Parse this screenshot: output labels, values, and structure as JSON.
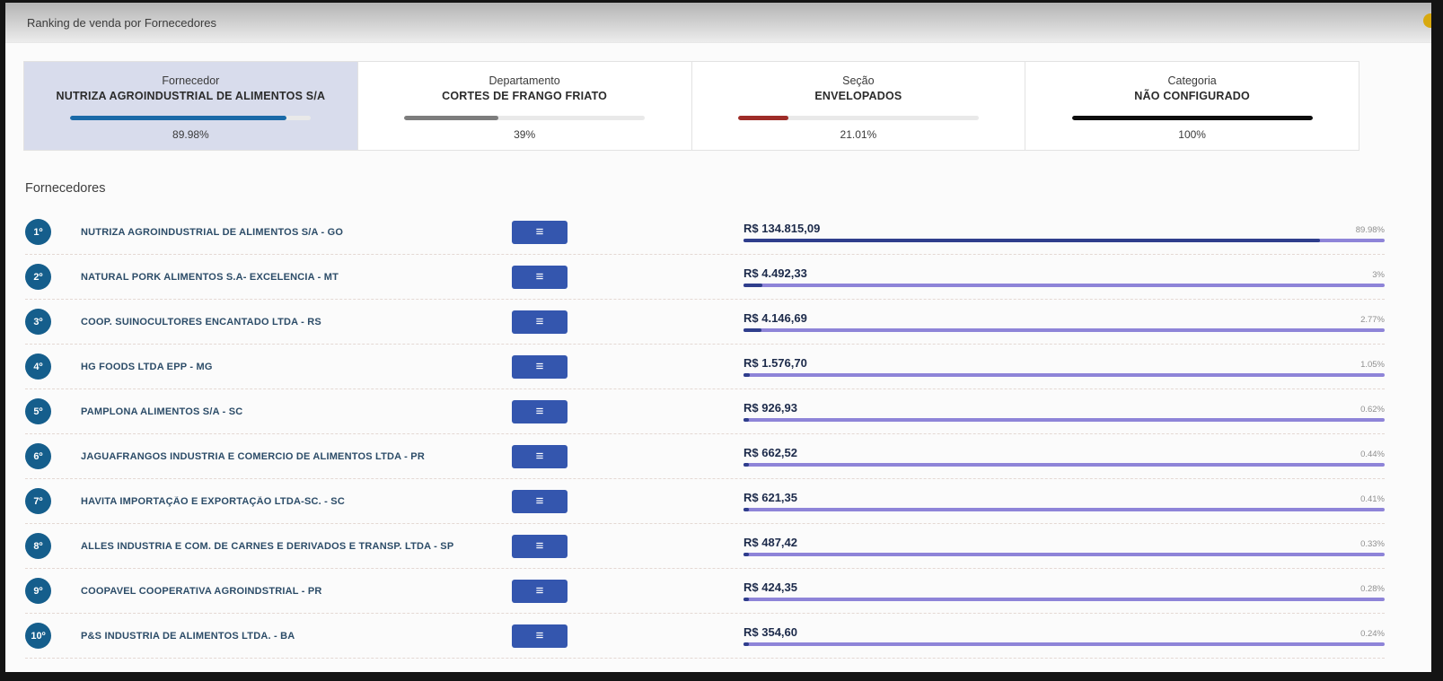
{
  "header": {
    "title": "Ranking de venda por Fornecedores"
  },
  "cards": [
    {
      "label": "Fornecedor",
      "value": "NUTRIZA AGROINDUSTRIAL DE ALIMENTOS S/A",
      "percent": 89.98,
      "percent_label": "89.98%",
      "bar_color": "#1a6aa8"
    },
    {
      "label": "Departamento",
      "value": "CORTES DE FRANGO FRIATO",
      "percent": 39,
      "percent_label": "39%",
      "bar_color": "#7d7d7d"
    },
    {
      "label": "Seção",
      "value": "ENVELOPADOS",
      "percent": 21.01,
      "percent_label": "21.01%",
      "bar_color": "#9e2c28"
    },
    {
      "label": "Categoria",
      "value": "NÃO CONFIGURADO",
      "percent": 100,
      "percent_label": "100%",
      "bar_color": "#0d0d0d"
    }
  ],
  "section": {
    "title": "Fornecedores"
  },
  "row_icon": "≡",
  "colors": {
    "row_bar_fill": "#2f3e8c",
    "row_bar_track": "#8e84d8",
    "rank_badge": "#155e8c",
    "menu_button": "#3456ae"
  },
  "suppliers": [
    {
      "rank": "1º",
      "name": "NUTRIZA AGROINDUSTRIAL DE ALIMENTOS S/A - GO",
      "value": "R$ 134.815,09",
      "percent": 89.98,
      "percent_label": "89.98%"
    },
    {
      "rank": "2º",
      "name": "NATURAL PORK ALIMENTOS S.A- EXCELENCIA - MT",
      "value": "R$ 4.492,33",
      "percent": 3,
      "percent_label": "3%"
    },
    {
      "rank": "3º",
      "name": "COOP. SUINOCULTORES ENCANTADO LTDA - RS",
      "value": "R$ 4.146,69",
      "percent": 2.77,
      "percent_label": "2.77%"
    },
    {
      "rank": "4º",
      "name": "HG FOODS LTDA EPP - MG",
      "value": "R$ 1.576,70",
      "percent": 1.05,
      "percent_label": "1.05%"
    },
    {
      "rank": "5º",
      "name": "PAMPLONA ALIMENTOS S/A - SC",
      "value": "R$ 926,93",
      "percent": 0.62,
      "percent_label": "0.62%"
    },
    {
      "rank": "6º",
      "name": "JAGUAFRANGOS INDUSTRIA E COMERCIO DE ALIMENTOS LTDA - PR",
      "value": "R$ 662,52",
      "percent": 0.44,
      "percent_label": "0.44%"
    },
    {
      "rank": "7º",
      "name": "HAVITA IMPORTAÇÃO E EXPORTAÇÃO LTDA-SC. - SC",
      "value": "R$ 621,35",
      "percent": 0.41,
      "percent_label": "0.41%"
    },
    {
      "rank": "8º",
      "name": "ALLES INDUSTRIA E COM. DE CARNES E DERIVADOS E TRANSP. LTDA - SP",
      "value": "R$ 487,42",
      "percent": 0.33,
      "percent_label": "0.33%"
    },
    {
      "rank": "9º",
      "name": "COOPAVEL COOPERATIVA AGROINDSTRIAL - PR",
      "value": "R$ 424,35",
      "percent": 0.28,
      "percent_label": "0.28%"
    },
    {
      "rank": "10º",
      "name": "P&S INDUSTRIA DE ALIMENTOS LTDA. - BA",
      "value": "R$ 354,60",
      "percent": 0.24,
      "percent_label": "0.24%"
    }
  ]
}
